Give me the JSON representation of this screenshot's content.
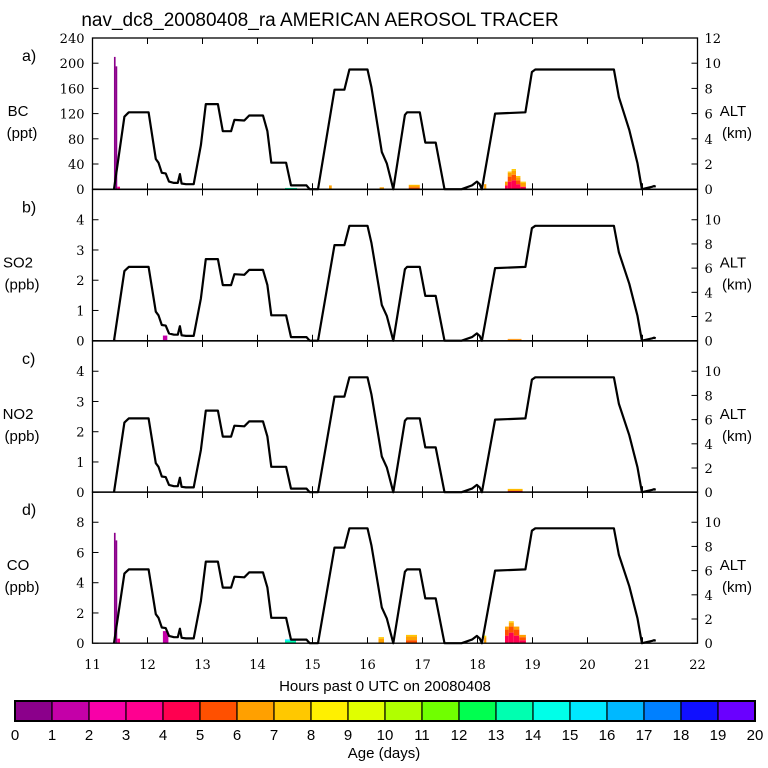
{
  "chart_data": {
    "type": "area",
    "title": "nav_dc8_20080408_ra AMERICAN AEROSOL TRACER",
    "xlabel": "Hours past 0 UTC on 20080408",
    "xlim": [
      11,
      22
    ],
    "xticks": [
      "11",
      "12",
      "13",
      "14",
      "15",
      "16",
      "17",
      "18",
      "19",
      "20",
      "21",
      "22"
    ],
    "right_axis": {
      "label": "ALT",
      "unit": "(km)"
    },
    "altitude_track": {
      "name": "ALT (km)",
      "x": [
        11.39,
        11.58,
        11.66,
        12.02,
        12.15,
        12.2,
        12.26,
        12.33,
        12.39,
        12.48,
        12.55,
        12.59,
        12.62,
        12.7,
        12.84,
        12.97,
        13.06,
        13.28,
        13.37,
        13.52,
        13.58,
        13.76,
        13.85,
        14.1,
        14.18,
        14.25,
        14.52,
        14.61,
        14.89,
        14.95,
        15.1,
        15.4,
        15.58,
        15.67,
        16.0,
        16.07,
        16.26,
        16.35,
        16.47,
        16.68,
        16.72,
        16.95,
        17.05,
        17.24,
        17.4,
        17.53,
        17.71,
        17.9,
        17.99,
        18.04,
        18.08,
        18.32,
        18.87,
        18.99,
        19.05,
        20.48,
        20.57,
        20.76,
        20.91,
        20.99,
        21.18,
        21.21,
        21.24
      ],
      "y": [
        0,
        5.75,
        6.1,
        6.1,
        2.4,
        2.1,
        1.3,
        1.25,
        0.6,
        0.5,
        0.5,
        1.2,
        0.45,
        0.4,
        0.4,
        3.5,
        6.75,
        6.75,
        4.6,
        4.6,
        5.5,
        5.45,
        5.85,
        5.85,
        4.6,
        2.1,
        2.1,
        0.3,
        0.3,
        0,
        0,
        7.9,
        7.9,
        9.5,
        9.5,
        8.1,
        2.95,
        2.05,
        0,
        5.9,
        6.1,
        6.1,
        3.7,
        3.7,
        0,
        0,
        0,
        0.3,
        0.6,
        0.4,
        0,
        6.0,
        6.1,
        9.3,
        9.5,
        9.5,
        7.3,
        4.7,
        2.05,
        0,
        0.2,
        0.25,
        0.2
      ]
    },
    "colorbar": {
      "label": "Age (days)",
      "ticks": [
        "0",
        "1",
        "2",
        "3",
        "4",
        "5",
        "6",
        "7",
        "8",
        "9",
        "10",
        "11",
        "12",
        "13",
        "14",
        "15",
        "16",
        "17",
        "18",
        "19",
        "20"
      ],
      "colors": [
        "#8b008b",
        "#c400a8",
        "#f800a8",
        "#ff0090",
        "#ff0050",
        "#ff5000",
        "#ffa000",
        "#ffc800",
        "#fff000",
        "#e0ff00",
        "#b0ff00",
        "#70ff00",
        "#00ff50",
        "#00ffb0",
        "#00ffe8",
        "#00e8ff",
        "#00b8ff",
        "#0080ff",
        "#1010ff",
        "#6a00ff"
      ]
    },
    "panels": [
      {
        "tag": "a)",
        "species": "BC",
        "unit": "(ppt)",
        "ylim": [
          0,
          240
        ],
        "yticks": [
          "0",
          "40",
          "80",
          "120",
          "160",
          "200",
          "240"
        ],
        "alt_lim": [
          0,
          12
        ],
        "alt_ticks": [
          "0",
          "2",
          "4",
          "6",
          "8",
          "10",
          "12"
        ],
        "bars": [
          {
            "x0": 11.39,
            "x1": 11.42,
            "stack": [
              [
                0,
                210
              ]
            ]
          },
          {
            "x0": 11.42,
            "x1": 11.45,
            "stack": [
              [
                0,
                195
              ]
            ]
          },
          {
            "x0": 11.45,
            "x1": 11.5,
            "stack": [
              [
                3,
                4
              ]
            ]
          },
          {
            "x0": 14.5,
            "x1": 14.72,
            "stack": [
              [
                13,
                2
              ]
            ]
          },
          {
            "x0": 15.3,
            "x1": 15.35,
            "stack": [
              [
                6,
                6
              ]
            ]
          },
          {
            "x0": 16.22,
            "x1": 16.3,
            "stack": [
              [
                6,
                3
              ]
            ]
          },
          {
            "x0": 16.75,
            "x1": 16.95,
            "stack": [
              [
                5,
                3
              ],
              [
                6,
                3
              ],
              [
                7,
                1
              ]
            ]
          },
          {
            "x0": 18.12,
            "x1": 18.16,
            "stack": [
              [
                6,
                8
              ]
            ]
          },
          {
            "x0": 18.5,
            "x1": 18.55,
            "stack": [
              [
                4,
                6
              ],
              [
                6,
                6
              ]
            ]
          },
          {
            "x0": 18.55,
            "x1": 18.62,
            "stack": [
              [
                4,
                12
              ],
              [
                5,
                8
              ],
              [
                6,
                6
              ],
              [
                7,
                2
              ]
            ]
          },
          {
            "x0": 18.62,
            "x1": 18.7,
            "stack": [
              [
                4,
                14
              ],
              [
                5,
                9
              ],
              [
                6,
                6
              ],
              [
                7,
                3
              ]
            ]
          },
          {
            "x0": 18.7,
            "x1": 18.78,
            "stack": [
              [
                4,
                8
              ],
              [
                5,
                6
              ],
              [
                6,
                5
              ],
              [
                7,
                2
              ]
            ]
          },
          {
            "x0": 18.78,
            "x1": 18.88,
            "stack": [
              [
                4,
                4
              ],
              [
                6,
                6
              ],
              [
                7,
                2
              ]
            ]
          }
        ]
      },
      {
        "tag": "b)",
        "species": "SO2",
        "unit": "(ppb)",
        "ylim": [
          0,
          5
        ],
        "yticks": [
          "0",
          "1",
          "2",
          "3",
          "4"
        ],
        "alt_lim": [
          0,
          12.5
        ],
        "alt_ticks": [
          "0",
          "2",
          "4",
          "6",
          "8",
          "10"
        ],
        "bars": [
          {
            "x0": 11.39,
            "x1": 11.43,
            "stack": [
              [
                0,
                0.03
              ]
            ]
          },
          {
            "x0": 12.28,
            "x1": 12.36,
            "stack": [
              [
                1,
                0.17
              ]
            ]
          },
          {
            "x0": 16.8,
            "x1": 16.86,
            "stack": [
              [
                6,
                0.02
              ]
            ]
          },
          {
            "x0": 18.55,
            "x1": 18.8,
            "stack": [
              [
                4,
                0.03
              ],
              [
                6,
                0.03
              ]
            ]
          }
        ]
      },
      {
        "tag": "c)",
        "species": "NO2",
        "unit": "(ppb)",
        "ylim": [
          0,
          5
        ],
        "yticks": [
          "0",
          "1",
          "2",
          "3",
          "4"
        ],
        "alt_lim": [
          0,
          12.5
        ],
        "alt_ticks": [
          "0",
          "2",
          "4",
          "6",
          "8",
          "10"
        ],
        "bars": [
          {
            "x0": 18.55,
            "x1": 18.82,
            "stack": [
              [
                4,
                0.04
              ],
              [
                6,
                0.05
              ],
              [
                7,
                0.02
              ]
            ]
          }
        ]
      },
      {
        "tag": "d)",
        "species": "CO",
        "unit": "(ppb)",
        "ylim": [
          0,
          10
        ],
        "yticks": [
          "0",
          "2",
          "4",
          "6",
          "8"
        ],
        "alt_lim": [
          0,
          12.5
        ],
        "alt_ticks": [
          "0",
          "2",
          "4",
          "6",
          "8",
          "10"
        ],
        "bars": [
          {
            "x0": 11.39,
            "x1": 11.42,
            "stack": [
              [
                0,
                7.3
              ]
            ]
          },
          {
            "x0": 11.42,
            "x1": 11.45,
            "stack": [
              [
                0,
                6.8
              ]
            ]
          },
          {
            "x0": 11.45,
            "x1": 11.5,
            "stack": [
              [
                3,
                0.3
              ]
            ]
          },
          {
            "x0": 12.28,
            "x1": 12.38,
            "stack": [
              [
                1,
                0.8
              ]
            ]
          },
          {
            "x0": 14.5,
            "x1": 14.7,
            "stack": [
              [
                13,
                0.15
              ],
              [
                15,
                0.1
              ]
            ]
          },
          {
            "x0": 16.2,
            "x1": 16.3,
            "stack": [
              [
                6,
                0.3
              ],
              [
                7,
                0.1
              ]
            ]
          },
          {
            "x0": 16.7,
            "x1": 16.9,
            "stack": [
              [
                5,
                0.2
              ],
              [
                6,
                0.25
              ],
              [
                7,
                0.1
              ]
            ]
          },
          {
            "x0": 18.12,
            "x1": 18.16,
            "stack": [
              [
                6,
                0.4
              ],
              [
                8,
                0.1
              ]
            ]
          },
          {
            "x0": 18.5,
            "x1": 18.57,
            "stack": [
              [
                4,
                0.5
              ],
              [
                5,
                0.4
              ],
              [
                6,
                0.2
              ]
            ]
          },
          {
            "x0": 18.57,
            "x1": 18.66,
            "stack": [
              [
                4,
                0.7
              ],
              [
                5,
                0.4
              ],
              [
                6,
                0.25
              ],
              [
                7,
                0.1
              ]
            ]
          },
          {
            "x0": 18.66,
            "x1": 18.76,
            "stack": [
              [
                4,
                0.5
              ],
              [
                5,
                0.4
              ],
              [
                6,
                0.2
              ]
            ]
          },
          {
            "x0": 18.76,
            "x1": 18.88,
            "stack": [
              [
                4,
                0.2
              ],
              [
                5,
                0.2
              ],
              [
                6,
                0.15
              ]
            ]
          }
        ]
      }
    ]
  }
}
